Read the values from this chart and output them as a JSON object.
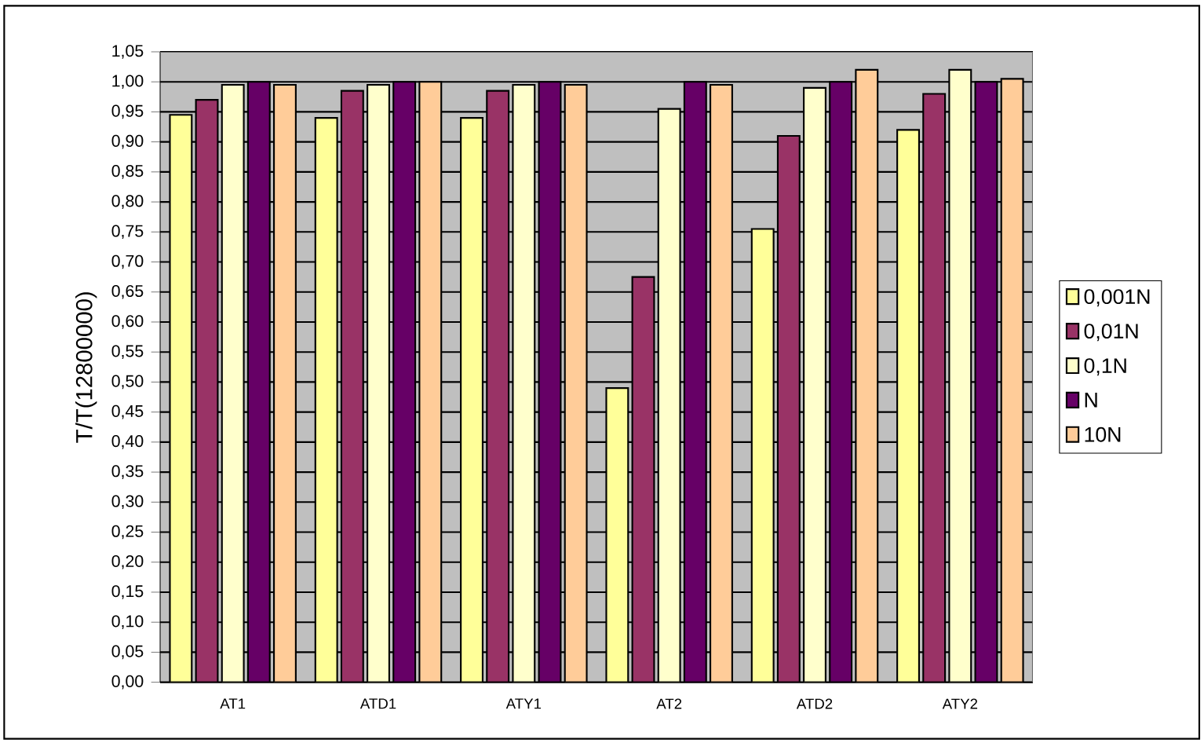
{
  "chart_data": {
    "type": "bar",
    "ylabel": "T/T(12800000)",
    "categories": [
      "AT1",
      "ATD1",
      "ATY1",
      "AT2",
      "ATD2",
      "ATY2"
    ],
    "series": [
      {
        "name": "0,001N",
        "color": "#ffff99",
        "values": [
          0.945,
          0.94,
          0.94,
          0.49,
          0.755,
          0.92
        ]
      },
      {
        "name": "0,01N",
        "color": "#993366",
        "values": [
          0.97,
          0.985,
          0.985,
          0.675,
          0.91,
          0.98
        ]
      },
      {
        "name": "0,1N",
        "color": "#ffffcc",
        "values": [
          0.995,
          0.995,
          0.995,
          0.955,
          0.99,
          1.02
        ]
      },
      {
        "name": "N",
        "color": "#660066",
        "values": [
          1.0,
          1.0,
          1.0,
          1.0,
          1.0,
          1.0
        ]
      },
      {
        "name": "10N",
        "color": "#ffcc99",
        "values": [
          0.995,
          1.0,
          0.995,
          0.995,
          1.02,
          1.005
        ]
      }
    ],
    "ylim": [
      0,
      1.05
    ],
    "yticks": [
      {
        "value": 0,
        "label": "0,00"
      },
      {
        "value": 0.05,
        "label": "0,05"
      },
      {
        "value": 0.1,
        "label": "0,10"
      },
      {
        "value": 0.15,
        "label": "0,15"
      },
      {
        "value": 0.2,
        "label": "0,20"
      },
      {
        "value": 0.25,
        "label": "0,25"
      },
      {
        "value": 0.3,
        "label": "0,30"
      },
      {
        "value": 0.35,
        "label": "0,35"
      },
      {
        "value": 0.4,
        "label": "0,40"
      },
      {
        "value": 0.45,
        "label": "0,45"
      },
      {
        "value": 0.5,
        "label": "0,50"
      },
      {
        "value": 0.55,
        "label": "0,55"
      },
      {
        "value": 0.6,
        "label": "0,60"
      },
      {
        "value": 0.65,
        "label": "0,65"
      },
      {
        "value": 0.7,
        "label": "0,70"
      },
      {
        "value": 0.75,
        "label": "0,75"
      },
      {
        "value": 0.8,
        "label": "0,80"
      },
      {
        "value": 0.85,
        "label": "0,85"
      },
      {
        "value": 0.9,
        "label": "0,90"
      },
      {
        "value": 0.95,
        "label": "0,95"
      },
      {
        "value": 1.0,
        "label": "1,00"
      },
      {
        "value": 1.05,
        "label": "1,05"
      }
    ],
    "grid": "y",
    "legend": "right"
  }
}
